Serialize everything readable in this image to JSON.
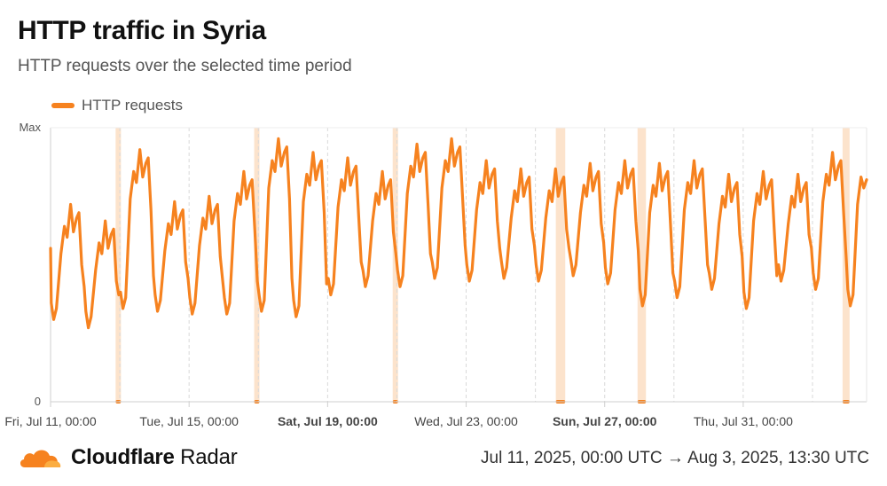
{
  "title": "HTTP traffic in Syria",
  "subtitle": "HTTP requests over the selected time period",
  "legend_label": "HTTP requests",
  "accent_color": "#f6821f",
  "outage_color": "#fce3cc",
  "footer": {
    "brand_strong": "Cloudflare",
    "brand_rest": " Radar",
    "logo_icon": "cloud-icon",
    "date_range": "Jul 11, 2025, 00:00 UTC → Aug 3, 2025, 13:30 UTC"
  },
  "chart_data": {
    "type": "line",
    "title": "HTTP traffic in Syria",
    "subtitle": "HTTP requests over the selected time period",
    "xlabel": "",
    "ylabel": "",
    "y_ticks": [
      "0",
      "Max"
    ],
    "ylim": [
      0,
      1
    ],
    "x_domain": [
      "2025-07-11T00:00Z",
      "2025-08-03T13:30Z"
    ],
    "x_ticks": [
      {
        "label": "Fri, Jul 11, 00:00",
        "bold": false
      },
      {
        "label": "Tue, Jul 15, 00:00",
        "bold": false
      },
      {
        "label": "Sat, Jul 19, 00:00",
        "bold": true
      },
      {
        "label": "Wed, Jul 23, 00:00",
        "bold": false
      },
      {
        "label": "Sun, Jul 27, 00:00",
        "bold": true
      },
      {
        "label": "Thu, Jul 31, 00:00",
        "bold": false
      }
    ],
    "x_tick_days": [
      0,
      4,
      8,
      12,
      16,
      20
    ],
    "gridlines_dashed": true,
    "legend_position": "top-left",
    "outage_days": [
      [
        1.93,
        1.97
      ],
      [
        5.93,
        5.97
      ],
      [
        9.93,
        9.97
      ],
      [
        14.64,
        14.81
      ],
      [
        17.0,
        17.14
      ],
      [
        22.92,
        23.02
      ]
    ],
    "series": [
      {
        "name": "HTTP requests",
        "color": "#f6821f",
        "daily_peaks": [
          0.72,
          0.66,
          0.92,
          0.73,
          0.75,
          0.84,
          0.96,
          0.91,
          0.89,
          0.84,
          0.94,
          0.96,
          0.88,
          0.85,
          0.85,
          0.87,
          0.88,
          0.87,
          0.88,
          0.83,
          0.84,
          0.83,
          0.91,
          0.9
        ],
        "daily_troughs": [
          0.3,
          0.27,
          0.34,
          0.33,
          0.32,
          0.32,
          0.33,
          0.31,
          0.39,
          0.42,
          0.42,
          0.45,
          0.44,
          0.45,
          0.44,
          0.46,
          0.43,
          0.35,
          0.38,
          0.41,
          0.34,
          0.44,
          0.41,
          0.35
        ],
        "start_value": 0.56,
        "end_value": 0.81
      }
    ]
  }
}
